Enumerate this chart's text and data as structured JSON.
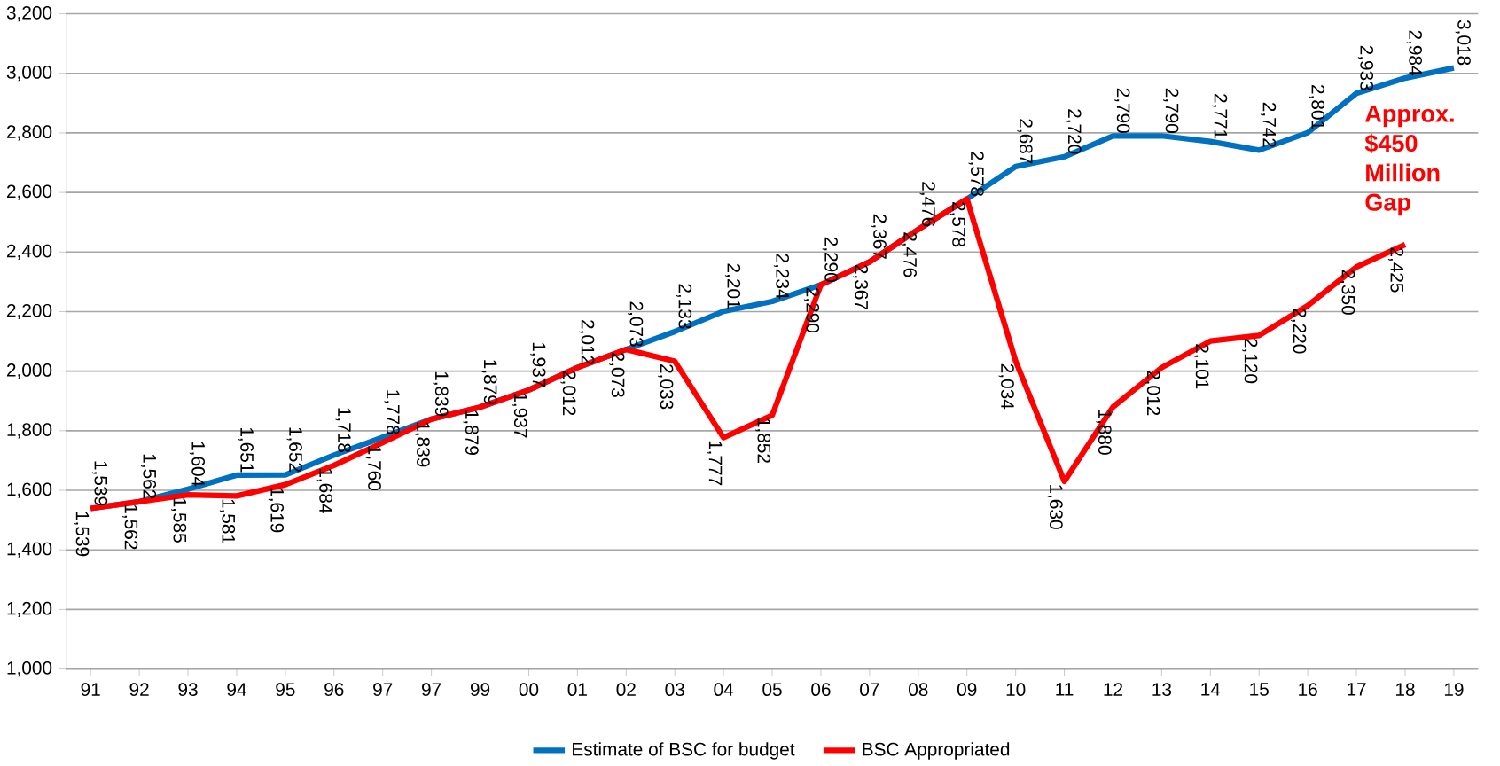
{
  "chart_data": {
    "type": "line",
    "categories": [
      "91",
      "92",
      "93",
      "94",
      "95",
      "96",
      "97",
      "97",
      "99",
      "00",
      "01",
      "02",
      "03",
      "04",
      "05",
      "06",
      "07",
      "08",
      "09",
      "10",
      "11",
      "12",
      "13",
      "14",
      "15",
      "16",
      "17",
      "18",
      "19"
    ],
    "series": [
      {
        "name": "Estimate of BSC for budget",
        "color": "#0070c0",
        "values": [
          1539,
          1562,
          1604,
          1651,
          1652,
          1718,
          1778,
          1839,
          1879,
          1937,
          2012,
          2073,
          2133,
          2201,
          2234,
          2290,
          2367,
          2476,
          2578,
          2687,
          2720,
          2790,
          2790,
          2771,
          2742,
          2801,
          2933,
          2984,
          3018
        ],
        "value_labels": [
          "1,539",
          "1,562",
          "1,604",
          "1,651",
          "1,652",
          "1,718",
          "1,778",
          "1,839",
          "1,879",
          "1,937",
          "2,012",
          "2,073",
          "2,133",
          "2,201",
          "2,234",
          "2,290",
          "2,367",
          "2,476",
          "2,578",
          "2,687",
          "2,720",
          "2,790",
          "2,790",
          "2,771",
          "2,742",
          "2,801",
          "2,933",
          "2,984",
          "3,018"
        ]
      },
      {
        "name": "BSC Appropriated",
        "color": "#ff0000",
        "values": [
          1539,
          1562,
          1585,
          1581,
          1619,
          1684,
          1760,
          1839,
          1879,
          1937,
          2012,
          2073,
          2033,
          1777,
          1852,
          2290,
          2367,
          2476,
          2578,
          2034,
          1630,
          1880,
          2012,
          2101,
          2120,
          2220,
          2350,
          2425,
          null
        ],
        "value_labels": [
          "1,539",
          "1,562",
          "1,585",
          "1,581",
          "1,619",
          "1,684",
          "1,760",
          "1,839",
          "1,879",
          "1,937",
          "2,012",
          "2,073",
          "2,033",
          "1,777",
          "1,852",
          "2,290",
          "2,367",
          "2,476",
          "2,578",
          "2,034",
          "1,630",
          "1,880",
          "2,012",
          "2,101",
          "2,120",
          "2,220",
          "2,350",
          "2,425",
          null
        ]
      }
    ],
    "ylim": [
      1000,
      3200
    ],
    "yticks": [
      {
        "value": 1000,
        "label": "1,000"
      },
      {
        "value": 1200,
        "label": "1,200"
      },
      {
        "value": 1400,
        "label": "1,400"
      },
      {
        "value": 1600,
        "label": "1,600"
      },
      {
        "value": 1800,
        "label": "1,800"
      },
      {
        "value": 2000,
        "label": "2,000"
      },
      {
        "value": 2200,
        "label": "2,200"
      },
      {
        "value": 2400,
        "label": "2,400"
      },
      {
        "value": 2600,
        "label": "2,600"
      },
      {
        "value": 2800,
        "label": "2,800"
      },
      {
        "value": 3000,
        "label": "3,000"
      },
      {
        "value": 3200,
        "label": "3,200"
      }
    ],
    "grid": "y",
    "legend": "bottom",
    "marker": "none",
    "line_style": "solid",
    "annotations": [
      "Approx. $450 Million Gap"
    ]
  }
}
